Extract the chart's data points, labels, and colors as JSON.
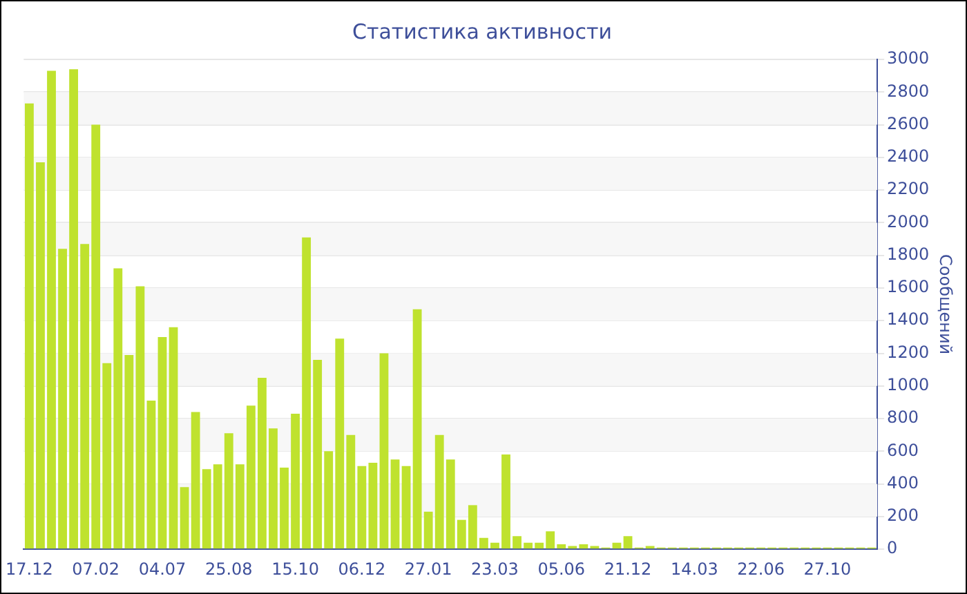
{
  "chart_data": {
    "type": "bar",
    "title": "Статистика активности",
    "ylabel": "Сообщений",
    "categories": [
      "17.12",
      null,
      null,
      null,
      null,
      null,
      "07.02",
      null,
      null,
      null,
      null,
      null,
      "04.07",
      null,
      null,
      null,
      null,
      null,
      "25.08",
      null,
      null,
      null,
      null,
      null,
      "15.10",
      null,
      null,
      null,
      null,
      null,
      "06.12",
      null,
      null,
      null,
      null,
      null,
      "27.01",
      null,
      null,
      null,
      null,
      null,
      "23.03",
      null,
      null,
      null,
      null,
      null,
      "05.06",
      null,
      null,
      null,
      null,
      null,
      "21.12",
      null,
      null,
      null,
      null,
      null,
      "14.03",
      null,
      null,
      null,
      null,
      null,
      "22.06",
      null,
      null,
      null,
      null,
      null,
      "27.10",
      null,
      null,
      null,
      null
    ],
    "values": [
      2730,
      2370,
      2930,
      1840,
      2940,
      1870,
      2600,
      1140,
      1720,
      1190,
      1610,
      910,
      1300,
      1360,
      380,
      840,
      490,
      520,
      710,
      520,
      880,
      1050,
      740,
      500,
      830,
      1910,
      1160,
      600,
      1290,
      700,
      510,
      530,
      1200,
      550,
      510,
      1470,
      230,
      700,
      550,
      180,
      270,
      70,
      40,
      580,
      80,
      40,
      40,
      110,
      30,
      20,
      30,
      20,
      10,
      40,
      80,
      10,
      20,
      10,
      10,
      10,
      10,
      10,
      10,
      10,
      10,
      10,
      10,
      10,
      10,
      10,
      10,
      10,
      10,
      10,
      10,
      10,
      10
    ],
    "color": "#bfe22e",
    "ylim": [
      0,
      3000
    ],
    "yticks": [
      0,
      200,
      400,
      600,
      800,
      1000,
      1200,
      1400,
      1600,
      1800,
      2000,
      2200,
      2400,
      2600,
      2800,
      3000
    ],
    "grid": "y"
  }
}
